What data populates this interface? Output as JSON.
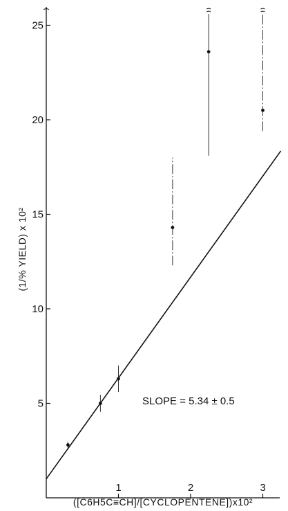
{
  "chart_data": {
    "type": "scatter",
    "title": "",
    "xlabel": "([C6H5C≡CH]/[CYCLOPENTENE])x10²",
    "ylabel": "(1/% YIELD) x 10²",
    "xlim": [
      0,
      3.25
    ],
    "ylim": [
      0,
      26
    ],
    "x_ticks": [
      1,
      2,
      3
    ],
    "y_ticks": [
      5,
      10,
      15,
      20,
      25
    ],
    "grid": false,
    "points": [
      {
        "x": 0.3,
        "y": 2.8,
        "err_low": 2.65,
        "err_high": 2.95,
        "err_style": "solid",
        "off_scale": false
      },
      {
        "x": 0.75,
        "y": 5.0,
        "err_low": 4.55,
        "err_high": 5.45,
        "err_style": "solid",
        "off_scale": false
      },
      {
        "x": 1.0,
        "y": 6.3,
        "err_low": 5.6,
        "err_high": 7.0,
        "err_style": "solid",
        "off_scale": false
      },
      {
        "x": 1.75,
        "y": 14.3,
        "err_low": 12.3,
        "err_high": 18.0,
        "err_style": "dashed",
        "off_scale": false
      },
      {
        "x": 2.25,
        "y": 23.6,
        "err_low": 18.1,
        "err_high": 25.6,
        "err_style": "solid",
        "off_scale": true
      },
      {
        "x": 3.0,
        "y": 20.5,
        "err_low": 19.4,
        "err_high": 25.6,
        "err_style": "dashed",
        "off_scale": true
      }
    ],
    "fit_line": {
      "slope": 5.34,
      "intercept": 1.0,
      "x_range": [
        0,
        3.25
      ]
    },
    "annotation": {
      "text": "SLOPE = 5.34 ± 0.5"
    }
  }
}
